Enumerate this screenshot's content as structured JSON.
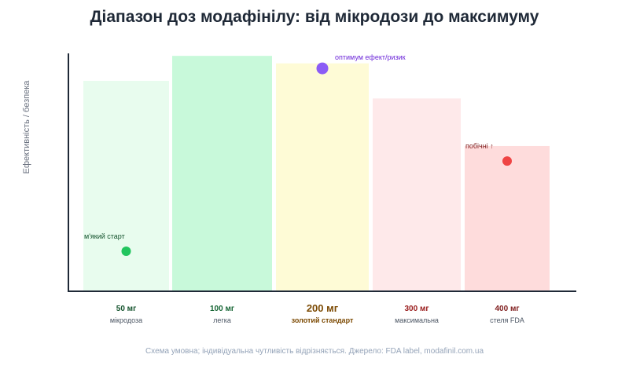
{
  "title": "Діапазон доз модафінілу: від мікродози до максимуму",
  "footnote": "Схема умовна; індивідуальна чутливість відрізняється. Джерело: FDA label, modafinil.com.ua",
  "chart_data": {
    "type": "bar",
    "title": "Діапазон доз модафінілу: від мікродози до максимуму",
    "xlabel": "",
    "ylabel": "Ефективність / безпека",
    "ylim": [
      0,
      100
    ],
    "grid": false,
    "categories": [
      "50 мг",
      "100 мг",
      "200 мг",
      "300 мг",
      "400 мг"
    ],
    "sublabels": [
      "мікродоза",
      "легка",
      "золотий стандарт",
      "максимальна",
      "стеля FDA"
    ],
    "values": [
      84,
      94,
      91,
      77,
      58
    ],
    "bar_colors": [
      "#e8fcee",
      "#c8f9da",
      "#fefbd6",
      "#fee9ea",
      "#fedcdc"
    ],
    "label_colors": [
      "#14532d",
      "#166534",
      "#7c4a03",
      "#991b1b",
      "#7f1d1d"
    ],
    "markers": [
      {
        "category": "50 мг",
        "value": 16,
        "color": "#22c55e",
        "label": "м'який старт",
        "label_color": "#14532d",
        "label_pos": "above-left"
      },
      {
        "category": "200 мг",
        "value": 89,
        "color": "#8b5cf6",
        "label": "оптимум ефект/ризик",
        "label_color": "#6d28d9",
        "label_pos": "right"
      },
      {
        "category": "400 мг",
        "value": 52,
        "color": "#ef4444",
        "label": "побічні ↑",
        "label_color": "#7f1d1d",
        "label_pos": "above-left"
      }
    ]
  }
}
